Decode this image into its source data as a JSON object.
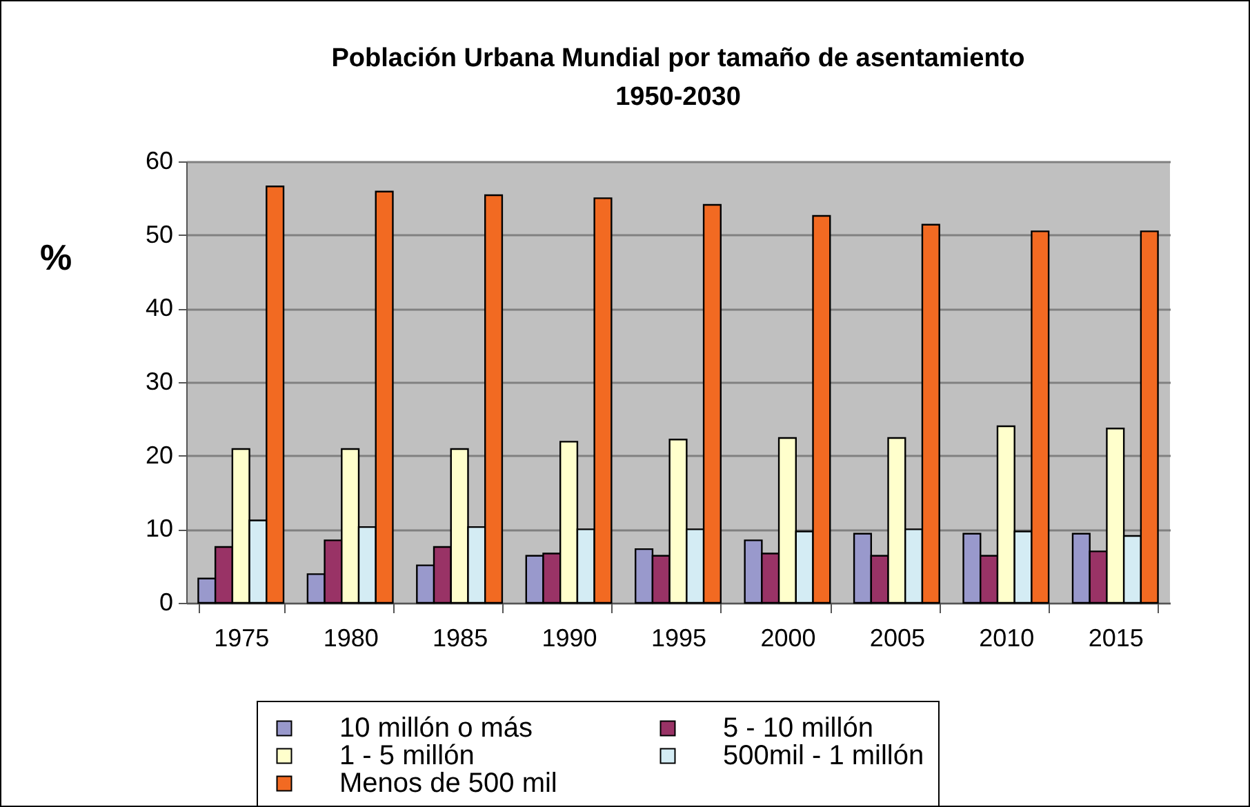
{
  "chart_data": {
    "type": "bar",
    "title": "Población Urbana Mundial por tamaño de asentamiento\n1950-2030",
    "ylabel": "%",
    "categories": [
      "1975",
      "1980",
      "1985",
      "1990",
      "1995",
      "2000",
      "2005",
      "2010",
      "2015"
    ],
    "series": [
      {
        "name": "10 millón o más",
        "color": "#9999cc",
        "values": [
          3.3,
          3.9,
          5.1,
          6.4,
          7.3,
          8.5,
          9.4,
          9.4,
          9.4
        ]
      },
      {
        "name": "5 - 10 millón",
        "color": "#993366",
        "values": [
          7.6,
          8.5,
          7.6,
          6.7,
          6.4,
          6.7,
          6.4,
          6.4,
          7.0
        ]
      },
      {
        "name": "1 - 5 millón",
        "color": "#ffffcc",
        "values": [
          20.9,
          20.9,
          20.9,
          21.9,
          22.2,
          22.4,
          22.4,
          24.0,
          23.7
        ]
      },
      {
        "name": "500mil - 1 millón",
        "color": "#d4ecf4",
        "values": [
          11.2,
          10.3,
          10.3,
          10.0,
          10.0,
          9.7,
          10.0,
          9.7,
          9.1
        ]
      },
      {
        "name": "Menos de 500 mil",
        "color": "#f26a22",
        "values": [
          56.6,
          55.9,
          55.4,
          55.0,
          54.1,
          52.6,
          51.4,
          50.5,
          50.5
        ]
      }
    ],
    "ylim": [
      0,
      60
    ],
    "yticks": [
      0,
      10,
      20,
      30,
      40,
      50,
      60
    ],
    "grid": "y",
    "legend": "bottom"
  }
}
